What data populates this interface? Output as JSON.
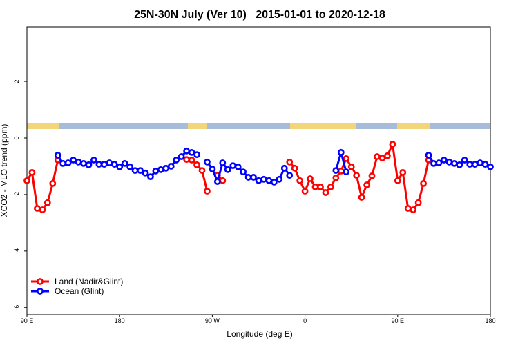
{
  "chart_data": {
    "type": "line",
    "title": "25N-30N July (Ver 10)   2015-01-01 to 2020-12-18",
    "x_label": "Longitude (deg E)",
    "y_label": "XCO2 - MLO trend (ppm)",
    "x": [
      90,
      95,
      100,
      105,
      110,
      115,
      120,
      125,
      130,
      135,
      140,
      145,
      150,
      155,
      160,
      165,
      170,
      175,
      180,
      185,
      190,
      195,
      200,
      205,
      210,
      215,
      220,
      225,
      230,
      235,
      240,
      245,
      250,
      255,
      260,
      265,
      270,
      275,
      280,
      285,
      290,
      295,
      300,
      305,
      310,
      315,
      320,
      325,
      330,
      335,
      340,
      345,
      350,
      355,
      360,
      365,
      370,
      375,
      380,
      385,
      390,
      395,
      400,
      405,
      410,
      415,
      420,
      425,
      430,
      435,
      440,
      445,
      450,
      455,
      460,
      465,
      470,
      475,
      480,
      485,
      490,
      495,
      500,
      505,
      510,
      515,
      520,
      525,
      530,
      535,
      540
    ],
    "xlim": [
      90,
      540
    ],
    "xticks": [
      {
        "value": 90,
        "label": "90 E"
      },
      180,
      {
        "value": 270,
        "label": "90 W"
      },
      {
        "value": 360,
        "label": "0"
      },
      {
        "value": 450,
        "label": "90 E"
      },
      {
        "value": 540,
        "label": "180"
      }
    ],
    "ylim": [
      -6.25,
      3.93
    ],
    "yticks": [
      -6,
      -4,
      -2,
      0,
      2
    ],
    "legend": "bottom-left",
    "series": [
      {
        "name": "Land (Nadir&Glint)",
        "color": "#ff0000",
        "values": [
          -1.51,
          -1.22,
          -2.49,
          -2.54,
          -2.29,
          -1.61,
          -0.78,
          null,
          null,
          null,
          null,
          null,
          null,
          null,
          null,
          null,
          null,
          null,
          null,
          null,
          null,
          null,
          null,
          null,
          null,
          null,
          null,
          null,
          null,
          null,
          null,
          -0.76,
          -0.78,
          -0.95,
          -1.15,
          -1.88,
          null,
          -1.32,
          -1.51,
          null,
          null,
          null,
          null,
          null,
          null,
          null,
          null,
          null,
          null,
          null,
          null,
          -0.85,
          -1.07,
          -1.51,
          -1.88,
          -1.44,
          -1.73,
          -1.73,
          -1.93,
          -1.73,
          -1.41,
          -1.17,
          -0.73,
          -1.02,
          -1.32,
          -2.1,
          -1.66,
          -1.34,
          -0.66,
          -0.71,
          -0.63,
          -0.22,
          -1.51,
          -1.22,
          -2.49,
          -2.54,
          -2.29,
          -1.61,
          -0.78,
          null,
          null,
          null,
          null,
          null,
          null,
          null,
          null,
          null,
          null,
          null,
          null
        ]
      },
      {
        "name": "Ocean (Glint)",
        "color": "#0000ff",
        "values": [
          null,
          null,
          null,
          null,
          null,
          null,
          -0.61,
          -0.9,
          -0.88,
          -0.78,
          -0.85,
          -0.9,
          -0.95,
          -0.78,
          -0.93,
          -0.93,
          -0.88,
          -0.93,
          -1.02,
          -0.9,
          -1.02,
          -1.15,
          -1.15,
          -1.24,
          -1.37,
          -1.17,
          -1.12,
          -1.07,
          -1.0,
          -0.78,
          -0.66,
          -0.46,
          -0.51,
          -0.59,
          null,
          -0.85,
          -1.1,
          -1.54,
          -0.88,
          -1.12,
          -0.98,
          -1.02,
          -1.2,
          -1.39,
          -1.39,
          -1.51,
          -1.46,
          -1.51,
          -1.56,
          -1.46,
          -1.07,
          -1.32,
          null,
          null,
          null,
          null,
          null,
          null,
          null,
          null,
          -1.15,
          -0.51,
          -1.2,
          null,
          null,
          null,
          null,
          null,
          null,
          null,
          null,
          null,
          null,
          null,
          null,
          null,
          null,
          null,
          -0.61,
          -0.9,
          -0.88,
          -0.78,
          -0.85,
          -0.9,
          -0.95,
          -0.78,
          -0.93,
          -0.93,
          -0.88,
          -0.93,
          -1.02
        ]
      }
    ]
  }
}
